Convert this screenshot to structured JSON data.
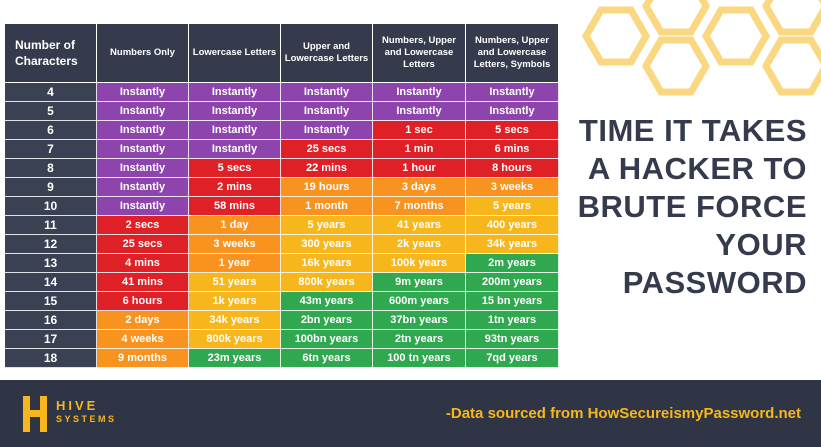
{
  "colors": {
    "purple": "#8e44ad",
    "red": "#df2027",
    "orange": "#f7931e",
    "yellow": "#f7b71c",
    "green": "#2fa84f",
    "header": "#353b4c",
    "footer": "#2f3545"
  },
  "table": {
    "headers": [
      "Number of Characters",
      "Numbers Only",
      "Lowercase Letters",
      "Upper and Lowercase Letters",
      "Numbers, Upper and Lowercase Letters",
      "Numbers, Upper and Lowercase Letters, Symbols"
    ],
    "rows": [
      {
        "n": "4",
        "cells": [
          [
            "Instantly",
            "purple"
          ],
          [
            "Instantly",
            "purple"
          ],
          [
            "Instantly",
            "purple"
          ],
          [
            "Instantly",
            "purple"
          ],
          [
            "Instantly",
            "purple"
          ]
        ]
      },
      {
        "n": "5",
        "cells": [
          [
            "Instantly",
            "purple"
          ],
          [
            "Instantly",
            "purple"
          ],
          [
            "Instantly",
            "purple"
          ],
          [
            "Instantly",
            "purple"
          ],
          [
            "Instantly",
            "purple"
          ]
        ]
      },
      {
        "n": "6",
        "cells": [
          [
            "Instantly",
            "purple"
          ],
          [
            "Instantly",
            "purple"
          ],
          [
            "Instantly",
            "purple"
          ],
          [
            "1 sec",
            "red"
          ],
          [
            "5 secs",
            "red"
          ]
        ]
      },
      {
        "n": "7",
        "cells": [
          [
            "Instantly",
            "purple"
          ],
          [
            "Instantly",
            "purple"
          ],
          [
            "25 secs",
            "red"
          ],
          [
            "1 min",
            "red"
          ],
          [
            "6 mins",
            "red"
          ]
        ]
      },
      {
        "n": "8",
        "cells": [
          [
            "Instantly",
            "purple"
          ],
          [
            "5 secs",
            "red"
          ],
          [
            "22 mins",
            "red"
          ],
          [
            "1 hour",
            "red"
          ],
          [
            "8 hours",
            "red"
          ]
        ]
      },
      {
        "n": "9",
        "cells": [
          [
            "Instantly",
            "purple"
          ],
          [
            "2 mins",
            "red"
          ],
          [
            "19 hours",
            "orange"
          ],
          [
            "3 days",
            "orange"
          ],
          [
            "3 weeks",
            "orange"
          ]
        ]
      },
      {
        "n": "10",
        "cells": [
          [
            "Instantly",
            "purple"
          ],
          [
            "58 mins",
            "red"
          ],
          [
            "1 month",
            "orange"
          ],
          [
            "7 months",
            "orange"
          ],
          [
            "5 years",
            "yellow"
          ]
        ]
      },
      {
        "n": "11",
        "cells": [
          [
            "2 secs",
            "red"
          ],
          [
            "1 day",
            "orange"
          ],
          [
            "5 years",
            "yellow"
          ],
          [
            "41 years",
            "yellow"
          ],
          [
            "400 years",
            "yellow"
          ]
        ]
      },
      {
        "n": "12",
        "cells": [
          [
            "25 secs",
            "red"
          ],
          [
            "3 weeks",
            "orange"
          ],
          [
            "300 years",
            "yellow"
          ],
          [
            "2k years",
            "yellow"
          ],
          [
            "34k years",
            "yellow"
          ]
        ]
      },
      {
        "n": "13",
        "cells": [
          [
            "4 mins",
            "red"
          ],
          [
            "1 year",
            "orange"
          ],
          [
            "16k years",
            "yellow"
          ],
          [
            "100k years",
            "yellow"
          ],
          [
            "2m years",
            "green"
          ]
        ]
      },
      {
        "n": "14",
        "cells": [
          [
            "41 mins",
            "red"
          ],
          [
            "51 years",
            "yellow"
          ],
          [
            "800k years",
            "yellow"
          ],
          [
            "9m years",
            "green"
          ],
          [
            "200m years",
            "green"
          ]
        ]
      },
      {
        "n": "15",
        "cells": [
          [
            "6 hours",
            "red"
          ],
          [
            "1k years",
            "yellow"
          ],
          [
            "43m years",
            "green"
          ],
          [
            "600m years",
            "green"
          ],
          [
            "15 bn years",
            "green"
          ]
        ]
      },
      {
        "n": "16",
        "cells": [
          [
            "2 days",
            "orange"
          ],
          [
            "34k years",
            "yellow"
          ],
          [
            "2bn years",
            "green"
          ],
          [
            "37bn years",
            "green"
          ],
          [
            "1tn years",
            "green"
          ]
        ]
      },
      {
        "n": "17",
        "cells": [
          [
            "4 weeks",
            "orange"
          ],
          [
            "800k years",
            "yellow"
          ],
          [
            "100bn years",
            "green"
          ],
          [
            "2tn years",
            "green"
          ],
          [
            "93tn years",
            "green"
          ]
        ]
      },
      {
        "n": "18",
        "cells": [
          [
            "9 months",
            "orange"
          ],
          [
            "23m years",
            "green"
          ],
          [
            "6tn years",
            "green"
          ],
          [
            "100 tn years",
            "green"
          ],
          [
            "7qd years",
            "green"
          ]
        ]
      }
    ]
  },
  "headline": [
    "TIME IT TAKES",
    "A HACKER TO",
    "BRUTE FORCE",
    "YOUR",
    "PASSWORD"
  ],
  "footer": {
    "logo_top": "HIVE",
    "logo_bottom": "SYSTEMS",
    "source": "-Data sourced from HowSecureismyPassword.net"
  }
}
